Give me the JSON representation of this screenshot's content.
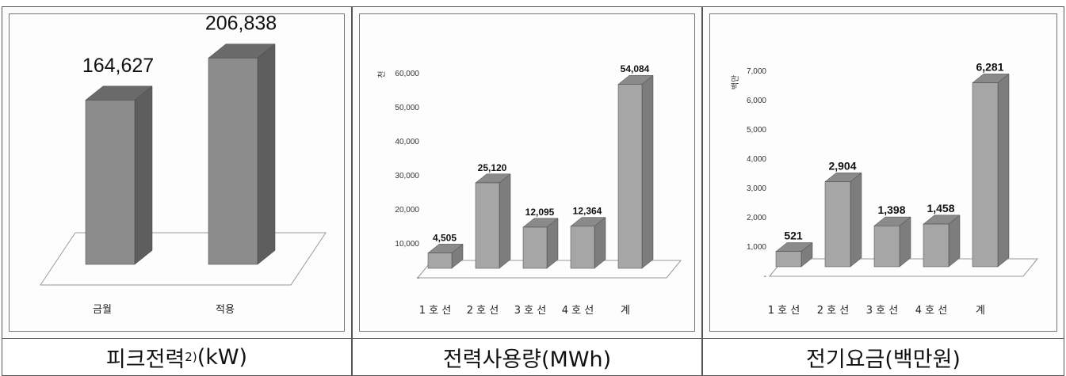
{
  "colors": {
    "bar_front": "#8c8c8c",
    "bar_top": "#6a6a6a",
    "bar_side": "#5e5e5e",
    "bar_front_light": "#a6a6a6",
    "bar_top_light": "#8a8a8a",
    "bar_side_light": "#7d7d7d"
  },
  "chart_data": [
    {
      "type": "bar",
      "title": "피크전력",
      "title_sup": "2)",
      "title_unit": "(kW)",
      "categories": [
        "금월",
        "적용"
      ],
      "values": [
        164627,
        206838
      ],
      "value_labels": [
        "164,627",
        "206,838"
      ],
      "ylim": [
        0,
        230000
      ]
    },
    {
      "type": "bar",
      "title": "전력사용량(MWh)",
      "ylabel": "천",
      "categories": [
        "1 호 선",
        "2 호 선",
        "3 호 선",
        "4 호 선",
        "계"
      ],
      "values": [
        4505,
        25120,
        12095,
        12364,
        54084
      ],
      "value_labels": [
        "4,505",
        "25,120",
        "12,095",
        "12,364",
        "54,084"
      ],
      "yticks": [
        "-",
        "10,000",
        "20,000",
        "30,000",
        "40,000",
        "50,000",
        "60,000"
      ],
      "ylim": [
        0,
        60000
      ]
    },
    {
      "type": "bar",
      "title": "전기요금(백만원)",
      "ylabel": "백만",
      "categories": [
        "1 호 선",
        "2 호 선",
        "3 호 선",
        "4 호 선",
        "계"
      ],
      "values": [
        521,
        2904,
        1398,
        1458,
        6281
      ],
      "value_labels": [
        "521",
        "2,904",
        "1,398",
        "1,458",
        "6,281"
      ],
      "yticks": [
        "-",
        "1,000",
        "2,000",
        "3,000",
        "4,000",
        "5,000",
        "6,000",
        "7,000"
      ],
      "ylim": [
        0,
        7000
      ]
    }
  ]
}
